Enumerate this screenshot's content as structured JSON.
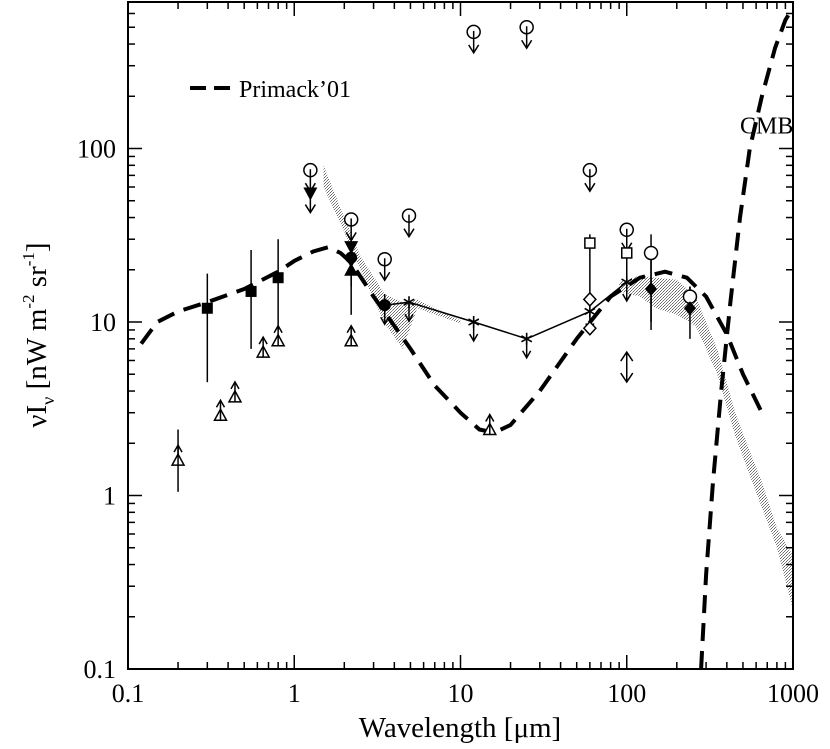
{
  "chart_data": {
    "type": "scatter",
    "title": "",
    "xlabel": "Wavelength [μm]",
    "ylabel": {
      "main": "νI",
      "sub": "ν",
      "units_open": " [nW m",
      "exp1": "-2",
      "mid": " sr",
      "exp2": "-1",
      "units_close": "]"
    },
    "xscale": "log",
    "yscale": "log",
    "xlim": [
      0.1,
      1000
    ],
    "ylim": [
      0.1,
      700
    ],
    "xticks": [
      {
        "value": 0.1,
        "label": "0.1"
      },
      {
        "value": 1,
        "label": "1"
      },
      {
        "value": 10,
        "label": "10"
      },
      {
        "value": 100,
        "label": "100"
      },
      {
        "value": 1000,
        "label": "1000"
      }
    ],
    "yticks": [
      {
        "value": 0.1,
        "label": "0.1"
      },
      {
        "value": 1,
        "label": "1"
      },
      {
        "value": 10,
        "label": "10"
      },
      {
        "value": 100,
        "label": "100"
      }
    ],
    "legend": {
      "position": "top-left",
      "label": "Primack’01"
    },
    "annotations": [
      {
        "text": "CMB",
        "x": 480,
        "y": 122
      }
    ],
    "series": [
      {
        "name": "Primack'01",
        "style": "dashed",
        "points": [
          [
            0.12,
            7.5
          ],
          [
            0.15,
            10
          ],
          [
            0.2,
            11.5
          ],
          [
            0.3,
            13
          ],
          [
            0.5,
            15.5
          ],
          [
            0.8,
            19.5
          ],
          [
            1.0,
            22.5
          ],
          [
            1.3,
            25.5
          ],
          [
            1.6,
            27
          ],
          [
            1.9,
            25
          ],
          [
            2.2,
            22
          ],
          [
            3.0,
            14
          ],
          [
            4.0,
            9.5
          ],
          [
            5.0,
            7
          ],
          [
            7.0,
            4.3
          ],
          [
            10.0,
            3.0
          ],
          [
            13.0,
            2.4
          ],
          [
            16.0,
            2.3
          ],
          [
            20.0,
            2.55
          ],
          [
            30.0,
            4.0
          ],
          [
            50.0,
            8.0
          ],
          [
            80.0,
            14
          ],
          [
            120.0,
            18
          ],
          [
            170.0,
            19.5
          ],
          [
            230.0,
            18
          ],
          [
            300.0,
            14
          ],
          [
            400.0,
            8.5
          ],
          [
            500.0,
            5
          ],
          [
            650.0,
            3.0
          ]
        ]
      },
      {
        "name": "CMB",
        "style": "dashed",
        "points": [
          [
            280,
            0.1
          ],
          [
            300,
            0.35
          ],
          [
            330,
            1.2
          ],
          [
            370,
            4
          ],
          [
            420,
            13
          ],
          [
            480,
            40
          ],
          [
            550,
            100
          ],
          [
            650,
            200
          ],
          [
            780,
            380
          ],
          [
            900,
            550
          ],
          [
            1000,
            650
          ]
        ]
      },
      {
        "name": "EBL estimate",
        "style": "solid-markers-asterisk",
        "points": [
          [
            3.5,
            12.5
          ],
          [
            4.9,
            13
          ],
          [
            12,
            10
          ],
          [
            25,
            8
          ],
          [
            60,
            11.5
          ],
          [
            100,
            17
          ]
        ]
      },
      {
        "name": "filled squares",
        "marker": "filled-square",
        "points": [
          [
            0.3,
            12
          ],
          [
            0.55,
            15
          ],
          [
            0.8,
            18
          ]
        ],
        "errors": [
          [
            4.5,
            19
          ],
          [
            7,
            26
          ],
          [
            9,
            30
          ]
        ]
      },
      {
        "name": "open triangles",
        "marker": "open-triangle-uparrow",
        "points": [
          [
            0.2,
            1.6
          ],
          [
            0.36,
            2.9
          ],
          [
            0.44,
            3.7
          ],
          [
            0.65,
            6.7
          ],
          [
            0.8,
            7.8
          ],
          [
            2.2,
            7.8
          ],
          [
            15,
            2.4
          ]
        ],
        "errors": [
          [
            1.05,
            2.4
          ],
          null,
          null,
          null,
          null,
          null,
          null
        ]
      },
      {
        "name": "filled circles",
        "marker": "filled-circle",
        "points": [
          [
            2.2,
            23.5
          ],
          [
            3.5,
            12.5
          ]
        ],
        "errors": [
          [
            16,
            30
          ],
          [
            10.5,
            14.5
          ]
        ]
      },
      {
        "name": "filled triangles",
        "marker": "filled-triangle",
        "points": [
          [
            2.2,
            20
          ]
        ],
        "errors": [
          [
            11,
            27
          ]
        ]
      },
      {
        "name": "filled triangles down",
        "marker": "filled-triangle-down",
        "points": [
          [
            1.25,
            55
          ],
          [
            2.2,
            27
          ]
        ],
        "errors": [
          null,
          null
        ]
      },
      {
        "name": "open circle upper limits",
        "marker": "open-circle-downarrow",
        "points": [
          [
            1.25,
            75
          ],
          [
            2.2,
            39
          ],
          [
            3.5,
            23
          ],
          [
            4.9,
            41
          ],
          [
            12,
            470
          ],
          [
            25,
            500
          ],
          [
            60,
            75
          ],
          [
            100,
            34
          ]
        ]
      },
      {
        "name": "open circles",
        "marker": "open-circle",
        "points": [
          [
            140,
            25
          ],
          [
            240,
            14
          ]
        ],
        "errors": [
          [
            10,
            32
          ],
          [
            11,
            16
          ]
        ]
      },
      {
        "name": "filled diamonds",
        "marker": "filled-diamond",
        "points": [
          [
            140,
            15.5
          ],
          [
            240,
            12
          ]
        ],
        "errors": [
          [
            9,
            25
          ],
          [
            8,
            16
          ]
        ]
      },
      {
        "name": "open diamonds",
        "marker": "open-diamond",
        "points": [
          [
            60,
            13.5
          ],
          [
            60,
            9.2
          ]
        ]
      },
      {
        "name": "open squares",
        "marker": "open-square",
        "points": [
          [
            60,
            28.5
          ],
          [
            100,
            25
          ]
        ],
        "errors": [
          [
            14,
            32
          ],
          [
            14,
            29
          ]
        ]
      },
      {
        "name": "double arrow",
        "marker": "double-arrow",
        "points": [
          [
            100,
            5.5
          ]
        ]
      }
    ],
    "shaded_bands": [
      {
        "name": "near-IR band",
        "points": [
          [
            1.5,
            60,
            80
          ],
          [
            2.0,
            33,
            40
          ],
          [
            2.5,
            20,
            24
          ],
          [
            3.5,
            9.8,
            14.5
          ],
          [
            4.5,
            7,
            13
          ],
          [
            5.5,
            12,
            13.5
          ],
          [
            10,
            9.8,
            10.2
          ]
        ]
      },
      {
        "name": "far-IR band",
        "points": [
          [
            90,
            15,
            17
          ],
          [
            120,
            14,
            18.5
          ],
          [
            150,
            12,
            18
          ],
          [
            200,
            11,
            17.5
          ],
          [
            260,
            9.5,
            14
          ],
          [
            350,
            5,
            7
          ],
          [
            450,
            2.2,
            3
          ],
          [
            550,
            1.3,
            1.8
          ],
          [
            650,
            0.85,
            1.2
          ],
          [
            800,
            0.5,
            0.65
          ],
          [
            1000,
            0.22,
            0.45
          ]
        ]
      }
    ]
  }
}
